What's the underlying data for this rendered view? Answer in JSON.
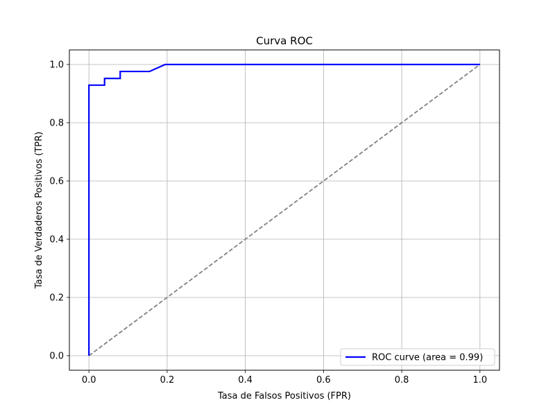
{
  "chart_data": {
    "type": "line",
    "title": "Curva ROC",
    "xlabel": "Tasa de Falsos Positivos (FPR)",
    "ylabel": "Tasa de Verdaderos Positivos (TPR)",
    "xlim": [
      -0.05,
      1.05
    ],
    "ylim": [
      -0.05,
      1.05
    ],
    "xticks": [
      0.0,
      0.2,
      0.4,
      0.6,
      0.8,
      1.0
    ],
    "yticks": [
      0.0,
      0.2,
      0.4,
      0.6,
      0.8,
      1.0
    ],
    "tick_labels": [
      "0.0",
      "0.2",
      "0.4",
      "0.6",
      "0.8",
      "1.0"
    ],
    "grid": true,
    "legend_position": "lower-right",
    "series": [
      {
        "name": "ROC curve (area = 0.99)",
        "color": "#0000ff",
        "style": "solid",
        "x": [
          0.0,
          0.0,
          0.04,
          0.04,
          0.08,
          0.08,
          0.155,
          0.195,
          1.0
        ],
        "y": [
          0.0,
          0.929,
          0.929,
          0.952,
          0.952,
          0.976,
          0.976,
          1.0,
          1.0
        ]
      },
      {
        "color": "#808080",
        "style": "dashed",
        "x": [
          0.0,
          1.0
        ],
        "y": [
          0.0,
          1.0
        ]
      }
    ]
  }
}
